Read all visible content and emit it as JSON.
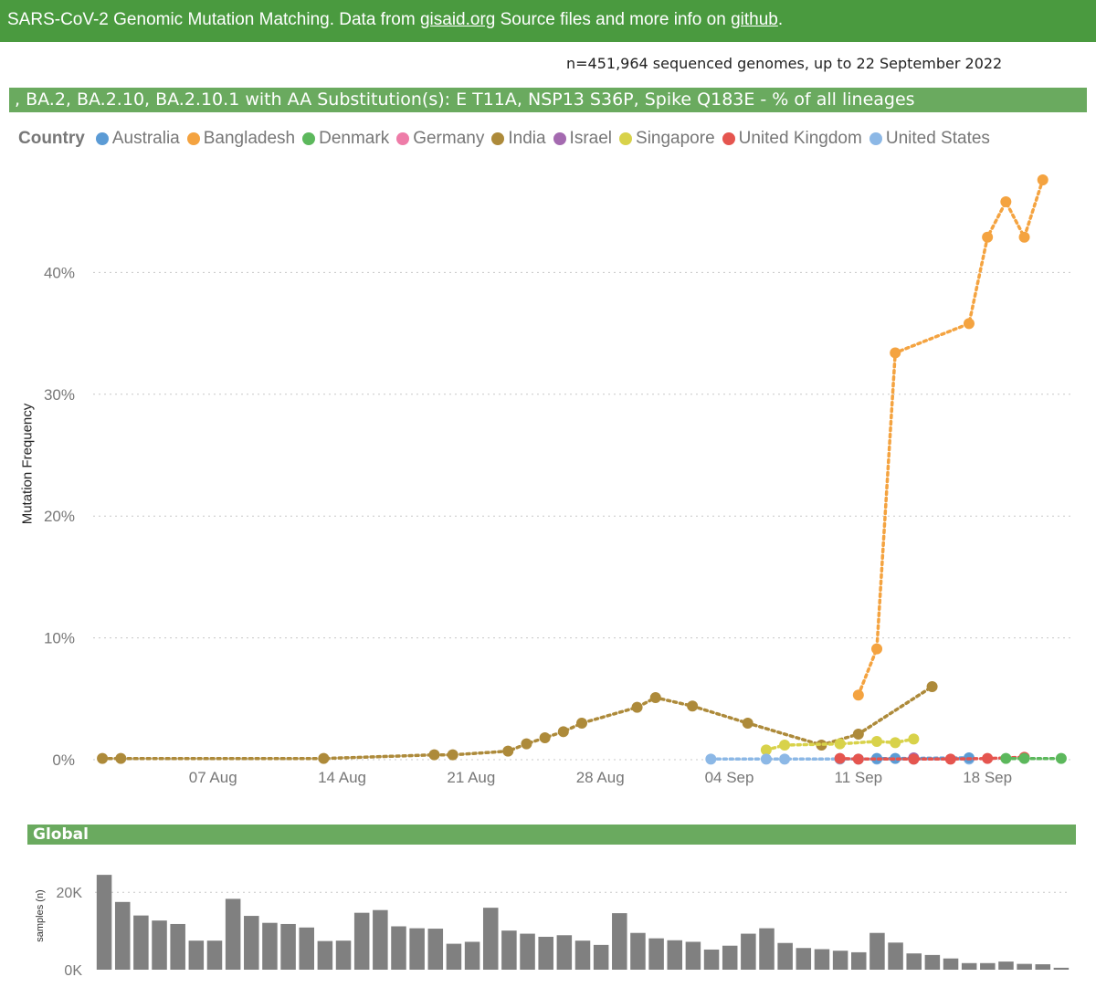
{
  "header": {
    "prefix": "SARS-CoV-2 Genomic Mutation Matching. Data from ",
    "link1": "gisaid.org",
    "middle": " Source files and more info on ",
    "link2": "github",
    "suffix": "."
  },
  "count_line": "n=451,964 sequenced genomes, up to 22 September 2022",
  "title_bar": ", BA.2, BA.2.10, BA.2.10.1 with AA Substitution(s): E T11A, NSP13 S36P, Spike Q183E - % of all lineages",
  "legend": {
    "title": "Country",
    "items": [
      {
        "label": "Australia",
        "color": "#5b9bd5"
      },
      {
        "label": "Bangladesh",
        "color": "#f4a340"
      },
      {
        "label": "Denmark",
        "color": "#5cb85c"
      },
      {
        "label": "Germany",
        "color": "#ee7ca8"
      },
      {
        "label": "India",
        "color": "#ad8a3a"
      },
      {
        "label": "Israel",
        "color": "#a46ab0"
      },
      {
        "label": "Singapore",
        "color": "#d8d24a"
      },
      {
        "label": "United Kingdom",
        "color": "#e5554f"
      },
      {
        "label": "United States",
        "color": "#8cb8e6"
      }
    ]
  },
  "global_label": "Global",
  "chart_data": [
    {
      "type": "line",
      "title": ", BA.2, BA.2.10, BA.2.10.1 with AA Substitution(s): E T11A, NSP13 S36P, Spike Q183E - % of all lineages",
      "xlabel": "",
      "ylabel": "Mutation Frequency",
      "x_axis": {
        "unit": "day index (0 = 01 Aug 2022)",
        "range": [
          -0.5,
          52.5
        ],
        "ticks": [
          6,
          13,
          20,
          27,
          34,
          41,
          48
        ],
        "tick_labels": [
          "07 Aug",
          "14 Aug",
          "21 Aug",
          "28 Aug",
          "04 Sep",
          "11 Sep",
          "18 Sep"
        ]
      },
      "y_axis": {
        "range": [
          0,
          50
        ],
        "ticks": [
          0,
          10,
          20,
          30,
          40
        ],
        "tick_labels": [
          "0%",
          "10%",
          "20%",
          "30%",
          "40%"
        ]
      },
      "grid": "horizontal dotted",
      "series": [
        {
          "name": "India",
          "color": "#ad8a3a",
          "points": [
            [
              0,
              0.1
            ],
            [
              1,
              0.1
            ],
            [
              12,
              0.1
            ],
            [
              18,
              0.4
            ],
            [
              19,
              0.4
            ],
            [
              22,
              0.7
            ],
            [
              23,
              1.3
            ],
            [
              24,
              1.8
            ],
            [
              25,
              2.3
            ],
            [
              26,
              3.0
            ],
            [
              29,
              4.3
            ],
            [
              30,
              5.1
            ],
            [
              32,
              4.4
            ],
            [
              35,
              3.0
            ],
            [
              39,
              1.2
            ],
            [
              41,
              2.1
            ],
            [
              45,
              6.0
            ]
          ]
        },
        {
          "name": "Bangladesh",
          "color": "#f4a340",
          "points": [
            [
              41,
              5.3
            ],
            [
              42,
              9.1
            ],
            [
              43,
              33.4
            ],
            [
              47,
              35.8
            ],
            [
              48,
              42.9
            ],
            [
              49,
              45.8
            ],
            [
              50,
              42.9
            ],
            [
              51,
              47.6
            ]
          ]
        },
        {
          "name": "Singapore",
          "color": "#d8d24a",
          "points": [
            [
              36,
              0.8
            ],
            [
              37,
              1.2
            ],
            [
              40,
              1.3
            ],
            [
              42,
              1.5
            ],
            [
              43,
              1.4
            ],
            [
              44,
              1.7
            ]
          ]
        },
        {
          "name": "United States",
          "color": "#8cb8e6",
          "points": [
            [
              33,
              0.05
            ],
            [
              36,
              0.05
            ],
            [
              37,
              0.05
            ],
            [
              40,
              0.05
            ],
            [
              41,
              0.05
            ],
            [
              42,
              0.05
            ],
            [
              44,
              0.05
            ],
            [
              47,
              0.05
            ]
          ]
        },
        {
          "name": "Australia",
          "color": "#5b9bd5",
          "points": [
            [
              42,
              0.1
            ],
            [
              43,
              0.1
            ],
            [
              47,
              0.15
            ]
          ]
        },
        {
          "name": "Israel",
          "color": "#a46ab0",
          "points": [
            [
              44,
              0.15
            ]
          ]
        },
        {
          "name": "United Kingdom",
          "color": "#e5554f",
          "points": [
            [
              40,
              0.1
            ],
            [
              41,
              0.05
            ],
            [
              44,
              0.05
            ],
            [
              46,
              0.05
            ],
            [
              48,
              0.1
            ],
            [
              50,
              0.2
            ]
          ]
        },
        {
          "name": "Denmark",
          "color": "#5cb85c",
          "points": [
            [
              49,
              0.1
            ],
            [
              50,
              0.1
            ],
            [
              52,
              0.1
            ]
          ]
        }
      ]
    },
    {
      "type": "bar",
      "title": "Global",
      "xlabel": "",
      "ylabel": "samples (n)",
      "y_axis": {
        "range": [
          0,
          25000
        ],
        "ticks": [
          0,
          20000
        ],
        "tick_labels": [
          "0K",
          "20K"
        ]
      },
      "grid": "horizontal dotted",
      "color": "#808080",
      "values": [
        24500,
        17500,
        14000,
        12700,
        11800,
        7500,
        7500,
        18300,
        13900,
        12100,
        11800,
        10900,
        7400,
        7500,
        14700,
        15400,
        11200,
        10700,
        10600,
        6700,
        7200,
        16000,
        10100,
        9300,
        8500,
        8900,
        7500,
        6400,
        14600,
        9500,
        8100,
        7600,
        7200,
        5200,
        6200,
        9300,
        10700,
        6900,
        5600,
        5300,
        4900,
        4500,
        9500,
        7000,
        4200,
        3800,
        2900,
        1700,
        1700,
        2100,
        1500,
        1400,
        500
      ]
    }
  ]
}
